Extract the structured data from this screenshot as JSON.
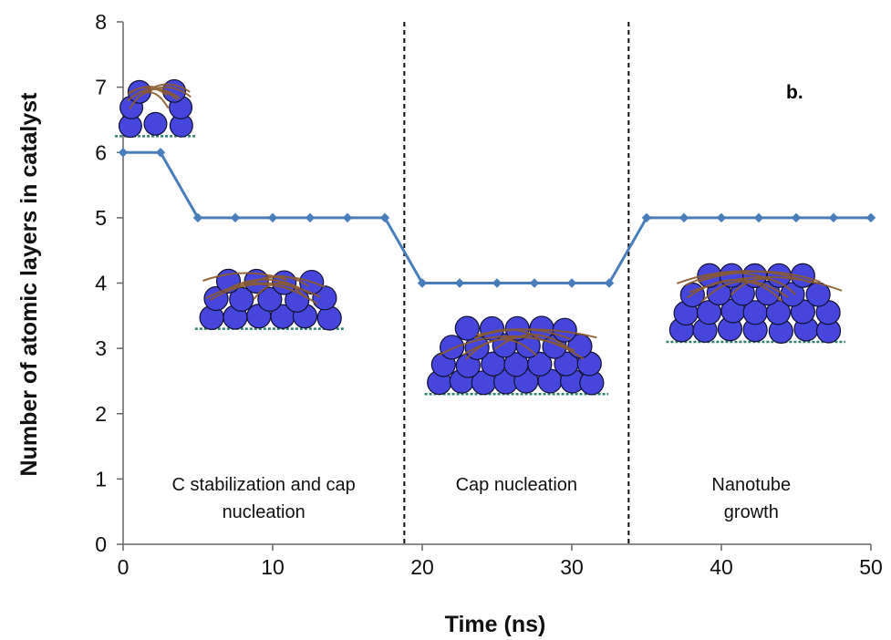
{
  "chart_data": {
    "type": "line",
    "title": "",
    "panel_label": "b.",
    "xlabel": "Time (ns)",
    "ylabel": "Number of atomic layers in catalyst",
    "xlim": [
      0,
      50
    ],
    "ylim": [
      0,
      8
    ],
    "x_ticks": [
      "0",
      "10",
      "20",
      "30",
      "40",
      "50"
    ],
    "y_ticks": [
      "0",
      "1",
      "2",
      "3",
      "4",
      "5",
      "6",
      "7",
      "8"
    ],
    "grid": false,
    "legend": "none",
    "series": [
      {
        "color": "#4a7dbb",
        "marker": "diamond",
        "x": [
          0,
          2.5,
          5,
          7.5,
          10,
          12.5,
          15,
          17.5,
          20,
          22.5,
          25,
          27.5,
          30,
          32.5,
          35,
          37.5,
          40,
          42.5,
          45,
          47.5,
          50
        ],
        "y": [
          6,
          6,
          5,
          5,
          5,
          5,
          5,
          5,
          4,
          4,
          4,
          4,
          4,
          4,
          5,
          5,
          5,
          5,
          5,
          5,
          5
        ]
      }
    ],
    "dividers_x": [
      18.8,
      33.8
    ],
    "regions": [
      {
        "lines": [
          "C stabilization and cap",
          "nucleation"
        ],
        "x_center": 9.4
      },
      {
        "lines": [
          "Cap nucleation"
        ],
        "x_center": 26.3
      },
      {
        "lines": [
          "Nanotube",
          "growth"
        ],
        "x_center": 42
      }
    ]
  },
  "insets": [
    {
      "name": "cluster-1",
      "x_center": 2.2,
      "y_base": 6.25,
      "width_units": 5.0,
      "height_units": 0.9
    },
    {
      "name": "cluster-2",
      "x_center": 9.8,
      "y_base": 3.3,
      "width_units": 9.5,
      "height_units": 0.95
    },
    {
      "name": "cluster-3",
      "x_center": 26.3,
      "y_base": 2.3,
      "width_units": 11.8,
      "height_units": 1.15
    },
    {
      "name": "cluster-4",
      "x_center": 42.3,
      "y_base": 3.1,
      "width_units": 11.5,
      "height_units": 1.25
    }
  ],
  "colors": {
    "atom_fill": "#4646dc",
    "atom_stroke": "#111133",
    "carbon": "#8b5a2b",
    "substrate": "#2f7f6f"
  }
}
